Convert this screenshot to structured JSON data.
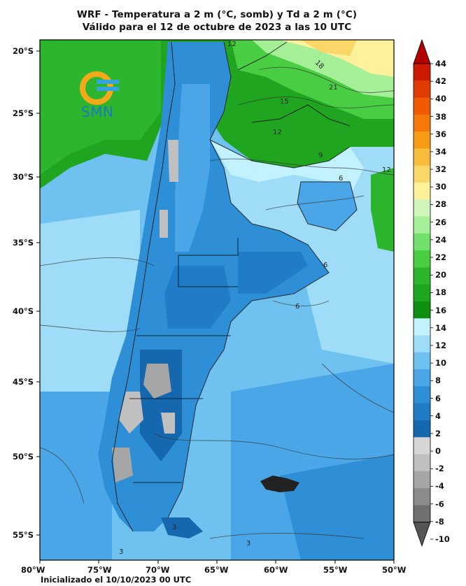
{
  "title_line1": "WRF - Temperatura a 2 m (°C, somb) y Td a 2 m (°C)",
  "title_line2": "Válido para el 12 de octubre de 2023 a las 10 UTC",
  "logo_text": "SMN",
  "init_label": "Inicializado el 10/10/2023 00 UTC",
  "lat_labels": [
    "20°S",
    "25°S",
    "30°S",
    "35°S",
    "40°S",
    "45°S",
    "50°S",
    "55°S"
  ],
  "lon_labels": [
    "80°W",
    "75°W",
    "70°W",
    "65°W",
    "60°W",
    "55°W",
    "50°W"
  ],
  "colorbar": {
    "ticks": [
      "44",
      "42",
      "40",
      "38",
      "36",
      "34",
      "32",
      "30",
      "28",
      "26",
      "24",
      "22",
      "20",
      "18",
      "16",
      "14",
      "12",
      "10",
      "8",
      "6",
      "4",
      "2",
      "0",
      "-2",
      "-4",
      "-6",
      "-8",
      "-10"
    ],
    "colors": [
      "#b00000",
      "#cc1a00",
      "#e03b00",
      "#f05a00",
      "#f5790a",
      "#f59c14",
      "#f7bd3a",
      "#fbd76a",
      "#fdf19b",
      "#cff6b8",
      "#a4ef98",
      "#74e06c",
      "#49cd43",
      "#2cb52d",
      "#1fa51f",
      "#0f8f10",
      "#c2f2ff",
      "#9edcf7",
      "#6fc1ef",
      "#4aa6e6",
      "#2f8fd6",
      "#207cc6",
      "#1668ae",
      "#d6d6d6",
      "#c0c0c0",
      "#a6a6a6",
      "#8c8c8c",
      "#707070",
      "#555555"
    ],
    "units": "°C"
  },
  "contour_labels": [
    "12",
    "18",
    "21",
    "15",
    "12",
    "9",
    "6",
    "12",
    "6",
    "6",
    "3",
    "3",
    "3"
  ]
}
